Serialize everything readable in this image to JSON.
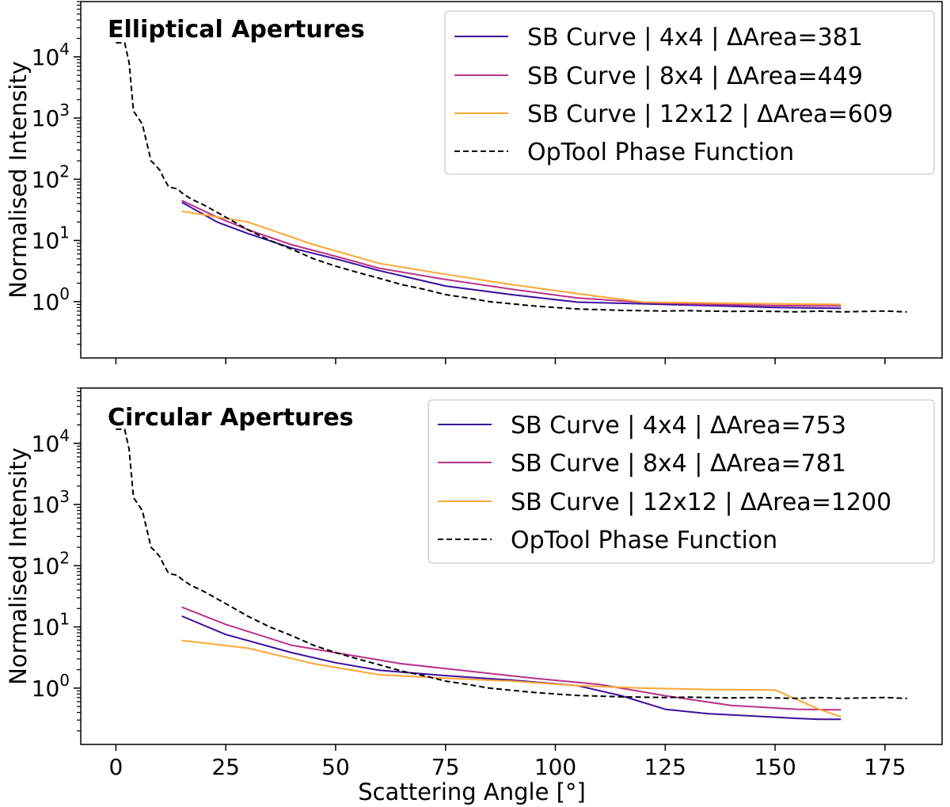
{
  "chart_data": [
    {
      "type": "line",
      "title": "Elliptical Apertures",
      "xlabel": "",
      "ylabel": "Normalised Intensity",
      "xlim": [
        -8,
        188
      ],
      "ylim": [
        0.12,
        80000
      ],
      "yscale": "log",
      "xticks": [
        0,
        25,
        50,
        75,
        100,
        125,
        150,
        175
      ],
      "yticks": [
        {
          "value": 1,
          "label": "10^0"
        },
        {
          "value": 10,
          "label": "10^1"
        },
        {
          "value": 100,
          "label": "10^2"
        },
        {
          "value": 1000,
          "label": "10^3"
        },
        {
          "value": 10000,
          "label": "10^4"
        }
      ],
      "show_xtick_labels": false,
      "grid": false,
      "legend_position": "top-right",
      "series": [
        {
          "name": "SB Curve | 4x4 | ΔArea=381",
          "color": "#3b0f9c",
          "dash": "solid",
          "x": [
            15,
            23,
            30,
            40,
            50,
            60,
            75,
            90,
            105,
            120,
            135,
            150,
            165
          ],
          "y": [
            42,
            20,
            13,
            7.5,
            5.0,
            3.2,
            1.8,
            1.3,
            0.98,
            0.92,
            0.86,
            0.8,
            0.78
          ]
        },
        {
          "name": "SB Curve | 8x4 | ΔArea=449",
          "color": "#b83289",
          "dash": "solid",
          "x": [
            15,
            23,
            30,
            40,
            50,
            60,
            75,
            90,
            105,
            120,
            135,
            150,
            165
          ],
          "y": [
            45,
            24,
            15,
            8.5,
            5.5,
            3.5,
            2.3,
            1.6,
            1.15,
            0.97,
            0.9,
            0.86,
            0.85
          ]
        },
        {
          "name": "SB Curve | 12x12 | ΔArea=609",
          "color": "#fca636",
          "dash": "solid",
          "x": [
            15,
            30,
            45,
            60,
            75,
            90,
            105,
            120,
            135,
            150,
            165
          ],
          "y": [
            30,
            20,
            8.5,
            4.2,
            2.8,
            1.9,
            1.35,
            0.98,
            0.95,
            0.92,
            0.9
          ]
        },
        {
          "name": "OpTool Phase Function",
          "color": "#000000",
          "dash": "dashed",
          "x": [
            0,
            2,
            3,
            4,
            6,
            7,
            8,
            9,
            10,
            11,
            12,
            13,
            14,
            15,
            17,
            20,
            25,
            30,
            35,
            40,
            45,
            50,
            55,
            60,
            65,
            70,
            75,
            80,
            85,
            90,
            95,
            100,
            105,
            110,
            115,
            120,
            125,
            130,
            135,
            140,
            145,
            150,
            155,
            160,
            165,
            170,
            175,
            180
          ],
          "y": [
            17000,
            17000,
            8000,
            1300,
            800,
            400,
            200,
            170,
            140,
            100,
            75,
            72,
            70,
            60,
            48,
            38,
            24,
            15,
            10,
            7.2,
            5.0,
            3.8,
            3.0,
            2.4,
            1.9,
            1.6,
            1.3,
            1.15,
            1.0,
            0.92,
            0.85,
            0.8,
            0.76,
            0.74,
            0.72,
            0.71,
            0.7,
            0.71,
            0.7,
            0.69,
            0.7,
            0.69,
            0.68,
            0.7,
            0.68,
            0.69,
            0.7,
            0.68
          ]
        }
      ]
    },
    {
      "type": "line",
      "title": "Circular Apertures",
      "xlabel": "Scattering Angle [°]",
      "ylabel": "Normalised Intensity",
      "xlim": [
        -8,
        188
      ],
      "ylim": [
        0.12,
        80000
      ],
      "yscale": "log",
      "xticks": [
        0,
        25,
        50,
        75,
        100,
        125,
        150,
        175
      ],
      "yticks": [
        {
          "value": 1,
          "label": "10^0"
        },
        {
          "value": 10,
          "label": "10^1"
        },
        {
          "value": 100,
          "label": "10^2"
        },
        {
          "value": 1000,
          "label": "10^3"
        },
        {
          "value": 10000,
          "label": "10^4"
        }
      ],
      "show_xtick_labels": true,
      "grid": false,
      "legend_position": "top-right",
      "series": [
        {
          "name": "SB Curve | 4x4 | ΔArea=753",
          "color": "#3b0f9c",
          "dash": "solid",
          "x": [
            15,
            25,
            40,
            50,
            60,
            75,
            90,
            105,
            115,
            125,
            135,
            145,
            155,
            160,
            165
          ],
          "y": [
            15,
            7.5,
            3.8,
            2.6,
            1.95,
            1.6,
            1.35,
            1.1,
            0.75,
            0.45,
            0.38,
            0.35,
            0.32,
            0.31,
            0.31
          ]
        },
        {
          "name": "SB Curve | 8x4 | ΔArea=781",
          "color": "#b83289",
          "dash": "solid",
          "x": [
            15,
            25,
            40,
            50,
            65,
            80,
            95,
            110,
            125,
            140,
            155,
            165
          ],
          "y": [
            21,
            11,
            5.0,
            3.8,
            2.5,
            1.9,
            1.45,
            1.15,
            0.75,
            0.52,
            0.45,
            0.44
          ]
        },
        {
          "name": "SB Curve | 12x12 | ΔArea=1200",
          "color": "#fca636",
          "dash": "solid",
          "x": [
            15,
            30,
            45,
            60,
            75,
            90,
            105,
            120,
            135,
            150,
            160,
            165
          ],
          "y": [
            6.0,
            4.5,
            2.5,
            1.65,
            1.45,
            1.3,
            1.1,
            1.0,
            0.95,
            0.93,
            0.45,
            0.34
          ]
        },
        {
          "name": "OpTool Phase Function",
          "color": "#000000",
          "dash": "dashed",
          "x": [
            0,
            2,
            3,
            4,
            6,
            7,
            8,
            9,
            10,
            11,
            12,
            13,
            14,
            15,
            17,
            20,
            25,
            30,
            35,
            40,
            45,
            50,
            55,
            60,
            65,
            70,
            75,
            80,
            85,
            90,
            95,
            100,
            105,
            110,
            115,
            120,
            125,
            130,
            135,
            140,
            145,
            150,
            155,
            160,
            165,
            170,
            175,
            180
          ],
          "y": [
            17000,
            17000,
            8000,
            1300,
            800,
            400,
            200,
            170,
            140,
            100,
            75,
            72,
            70,
            60,
            48,
            38,
            24,
            15,
            10,
            7.2,
            5.0,
            3.8,
            3.0,
            2.4,
            1.9,
            1.6,
            1.3,
            1.15,
            1.0,
            0.92,
            0.85,
            0.8,
            0.76,
            0.74,
            0.72,
            0.71,
            0.7,
            0.71,
            0.7,
            0.69,
            0.7,
            0.69,
            0.68,
            0.7,
            0.68,
            0.69,
            0.7,
            0.68
          ]
        }
      ]
    }
  ]
}
